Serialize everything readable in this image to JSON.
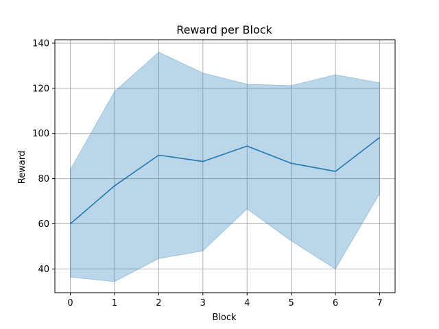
{
  "chart_data": {
    "type": "line",
    "title": "Reward per Block",
    "xlabel": "Block",
    "ylabel": "Reward",
    "x": [
      0,
      1,
      2,
      3,
      4,
      5,
      6,
      7
    ],
    "series": [
      {
        "values": [
          60.0,
          76.8,
          90.4,
          87.6,
          94.4,
          86.8,
          83.2,
          98.2
        ],
        "upper": [
          84.0,
          118.6,
          136.0,
          126.8,
          121.8,
          121.2,
          126.0,
          122.4
        ],
        "lower": [
          36.4,
          34.4,
          44.6,
          48.0,
          66.6,
          52.4,
          40.0,
          73.4
        ],
        "line_color": "#1f77b4",
        "band_color": "#1f77b4"
      }
    ],
    "xlim": [
      -0.35,
      7.35
    ],
    "ylim": [
      29.5,
      141.5
    ],
    "xticks": [
      0,
      1,
      2,
      3,
      4,
      5,
      6,
      7
    ],
    "yticks": [
      40,
      60,
      80,
      100,
      120,
      140
    ],
    "grid": true,
    "grid_color": "#b0b0b0"
  }
}
